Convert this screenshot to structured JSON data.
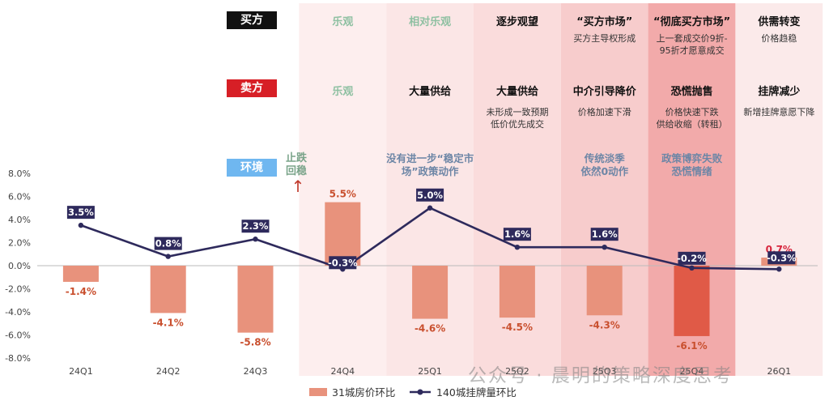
{
  "rows": {
    "buyer": {
      "label": "买方",
      "color": "#111111"
    },
    "seller": {
      "label": "卖方",
      "color": "#d71f26"
    },
    "env": {
      "label": "环境",
      "color": "#6fb7f0"
    }
  },
  "columns": [
    {
      "buyer_title": "乐观",
      "buyer_note": "",
      "seller_title": "乐观",
      "seller_note": "",
      "env": ""
    },
    {
      "buyer_title": "相对乐观",
      "buyer_note": "",
      "seller_title": "大量供给",
      "seller_note": "",
      "env": "没有进一步“稳定市场”政策动作"
    },
    {
      "buyer_title": "逐步观望",
      "buyer_note": "",
      "seller_title": "大量供给",
      "seller_note": "未形成一致预期\n低价优先成交",
      "env": ""
    },
    {
      "buyer_title": "“买方市场”",
      "buyer_note": "买方主导权形成",
      "seller_title": "中介引导降价",
      "seller_note": "价格加速下滑",
      "env": "传统淡季\n依然0动作"
    },
    {
      "buyer_title": "“彻底买方市场”",
      "buyer_note": "上一套成交价9折-\n95折才愿意成交",
      "seller_title": "恐慌抛售",
      "seller_note": "价格快速下跌\n供给收缩（转租）",
      "env": "政策博弈失败\n恐慌情绪"
    },
    {
      "buyer_title": "供需转变",
      "buyer_note": "价格趋稳",
      "seller_title": "挂牌减少",
      "seller_note": "新增挂牌意愿下降",
      "env": ""
    }
  ],
  "annotation": {
    "text": "止跌\n回稳",
    "arrow": "↑"
  },
  "watermark": "公众号 · 晨明的策略深度思考",
  "chart_data": {
    "type": "bar+line",
    "categories": [
      "24Q1",
      "24Q2",
      "24Q3",
      "24Q4",
      "25Q1",
      "25Q2",
      "25Q3",
      "25Q4",
      "26Q1"
    ],
    "ylim": [
      -8.0,
      8.0
    ],
    "yticks": [
      "8.0%",
      "6.0%",
      "4.0%",
      "2.0%",
      "0.0%",
      "-2.0%",
      "-4.0%",
      "-6.0%",
      "-8.0%"
    ],
    "series": [
      {
        "name": "31城房价环比",
        "type": "bar",
        "color": "#e8927c",
        "values": [
          -1.4,
          -4.1,
          -5.8,
          5.5,
          -4.6,
          -4.5,
          -4.3,
          -6.1,
          0.7
        ],
        "labels": [
          "-1.4%",
          "-4.1%",
          "-5.8%",
          "5.5%",
          "-4.6%",
          "-4.5%",
          "-4.3%",
          "-6.1%",
          "0.7%"
        ]
      },
      {
        "name": "140城挂牌量环比",
        "type": "line",
        "color": "#2e2a5c",
        "values": [
          3.5,
          0.8,
          2.3,
          -0.3,
          5.0,
          1.6,
          1.6,
          -0.2,
          -0.3
        ],
        "labels": [
          "3.5%",
          "0.8%",
          "2.3%",
          "-0.3%",
          "5.0%",
          "1.6%",
          "1.6%",
          "-0.2%",
          "-0.3%"
        ]
      }
    ],
    "label_color_bar": "#c9502f",
    "label_color_last": "#d7263d",
    "shade_colors": [
      "#fdeeee",
      "#fbe6e6",
      "#fadcdc",
      "#f7cccc",
      "#f2aaaa",
      "#fbeaea"
    ]
  }
}
